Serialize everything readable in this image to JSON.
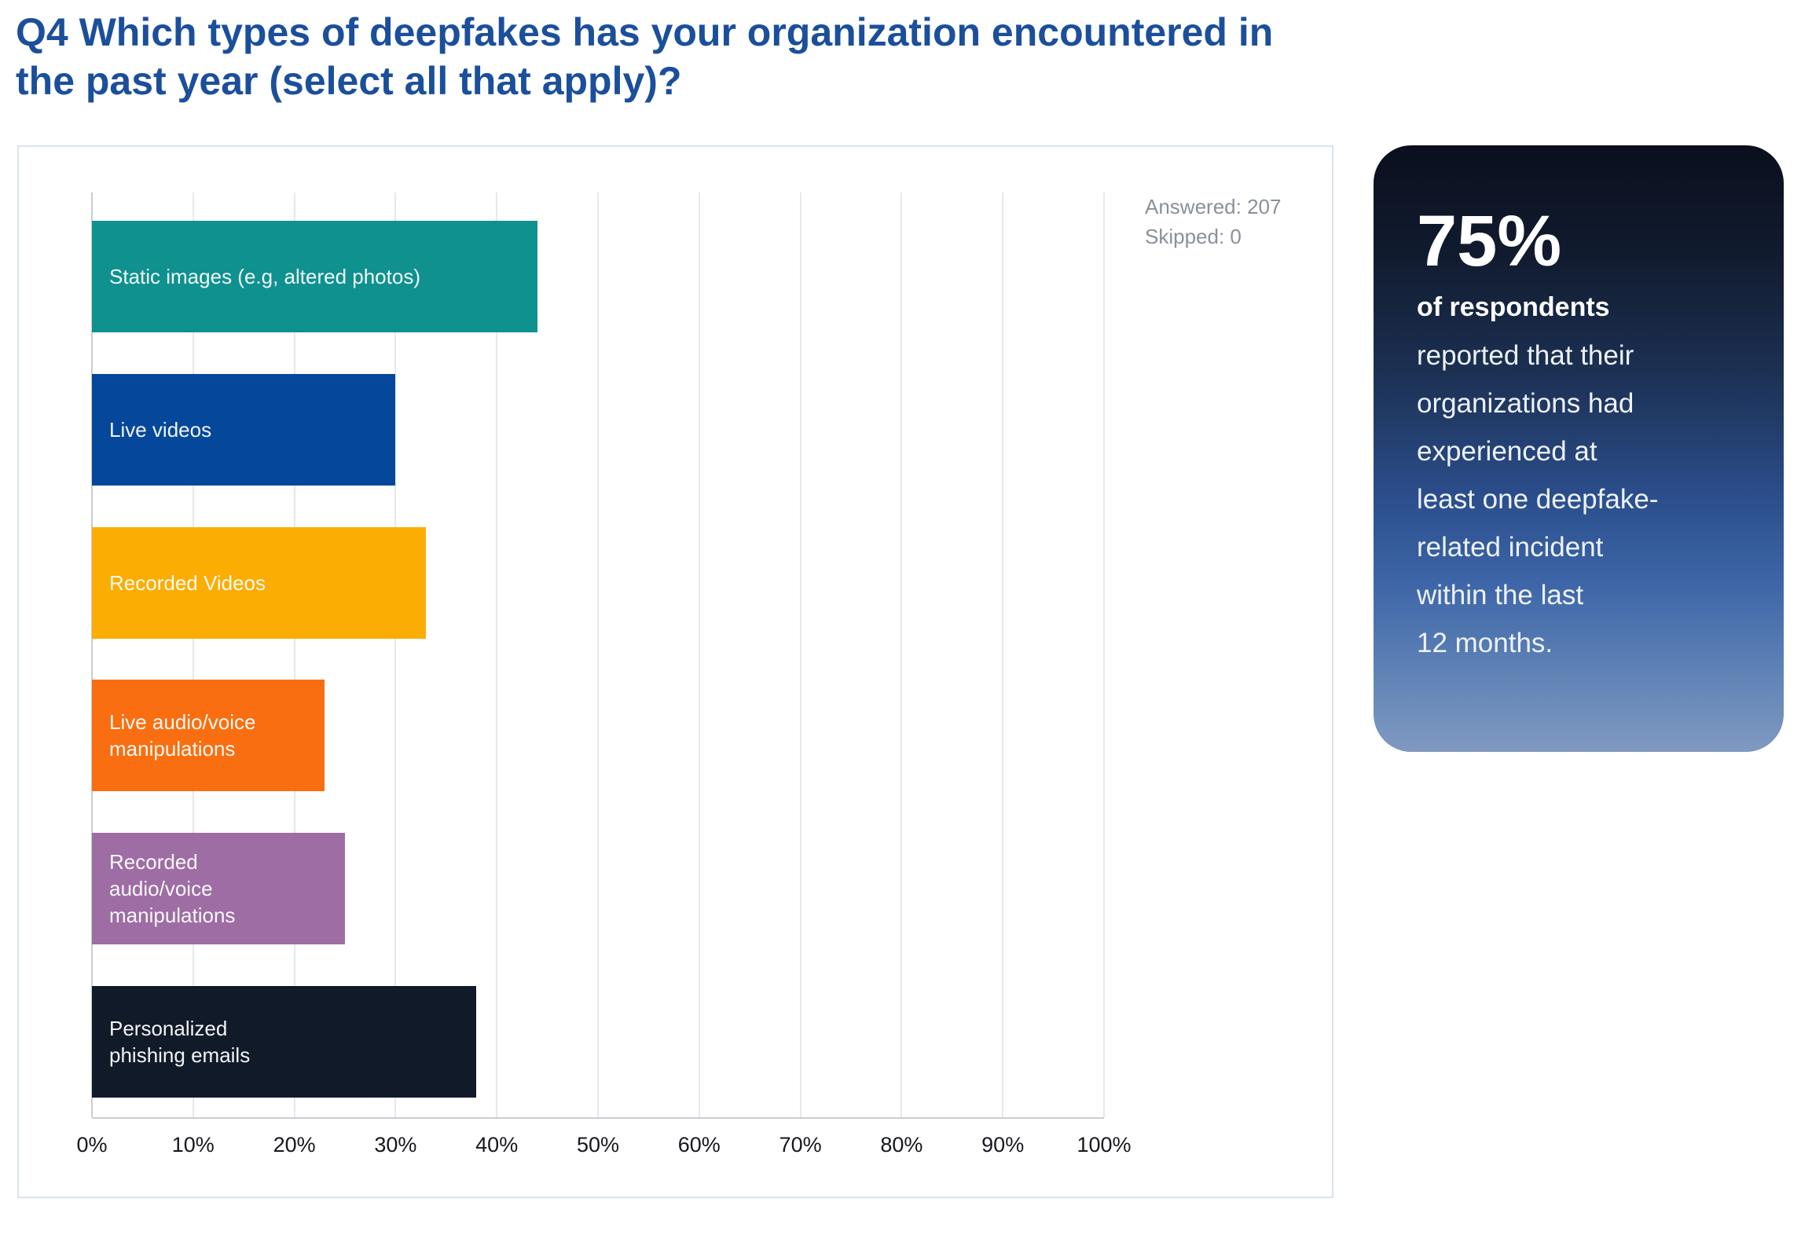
{
  "title": "Q4 Which types of deepfakes has your organization encountered in\nthe past year (select all that apply)?",
  "colors": {
    "title": "#1B4F9C",
    "panel_border": "#DAE3EE",
    "gridline": "#E7E8EB",
    "axis_line": "#C9CDD3",
    "tick_text": "#15171C",
    "meta_text": "#8A9099",
    "card_gradient_top": "#0A0F1D",
    "card_gradient_bottom": "#8099C1"
  },
  "meta": {
    "answered_label": "Answered: 207",
    "skipped_label": "Skipped: 0",
    "answered": 207,
    "skipped": 0
  },
  "chart_data": {
    "type": "bar",
    "orientation": "horizontal",
    "title": "",
    "xlabel": "",
    "ylabel": "",
    "xlim": [
      0,
      100
    ],
    "grid": true,
    "x_ticks": [
      "0%",
      "10%",
      "20%",
      "30%",
      "40%",
      "50%",
      "60%",
      "70%",
      "80%",
      "90%",
      "100%"
    ],
    "categories": [
      "Static images (e.g, altered photos)",
      "Live videos",
      "Recorded Videos",
      "Live audio/voice manipulations",
      "Recorded audio/voice manipulations",
      "Personalized phishing emails"
    ],
    "display_labels": [
      "Static images (e.g, altered photos)",
      "Live videos",
      "Recorded Videos",
      "Live audio/voice\nmanipulations",
      "Recorded\naudio/voice\nmanipulations",
      "Personalized\nphishing emails"
    ],
    "slugs": [
      "static-images",
      "live-videos",
      "recorded-videos",
      "live-audio-voice-manipulations",
      "recorded-audio-voice-manipulations",
      "personalized-phishing-emails"
    ],
    "values": [
      44,
      30,
      33,
      23,
      25,
      38
    ],
    "bar_colors": [
      "#0E918F",
      "#05489B",
      "#FCAD03",
      "#F96E10",
      "#9E6DA4",
      "#101A28"
    ]
  },
  "callout": {
    "stat": "75%",
    "lead": "of respondents",
    "body": "reported that their\norganizations had\nexperienced at\nleast one deepfake-\nrelated incident\nwithin the last\n12 months."
  }
}
